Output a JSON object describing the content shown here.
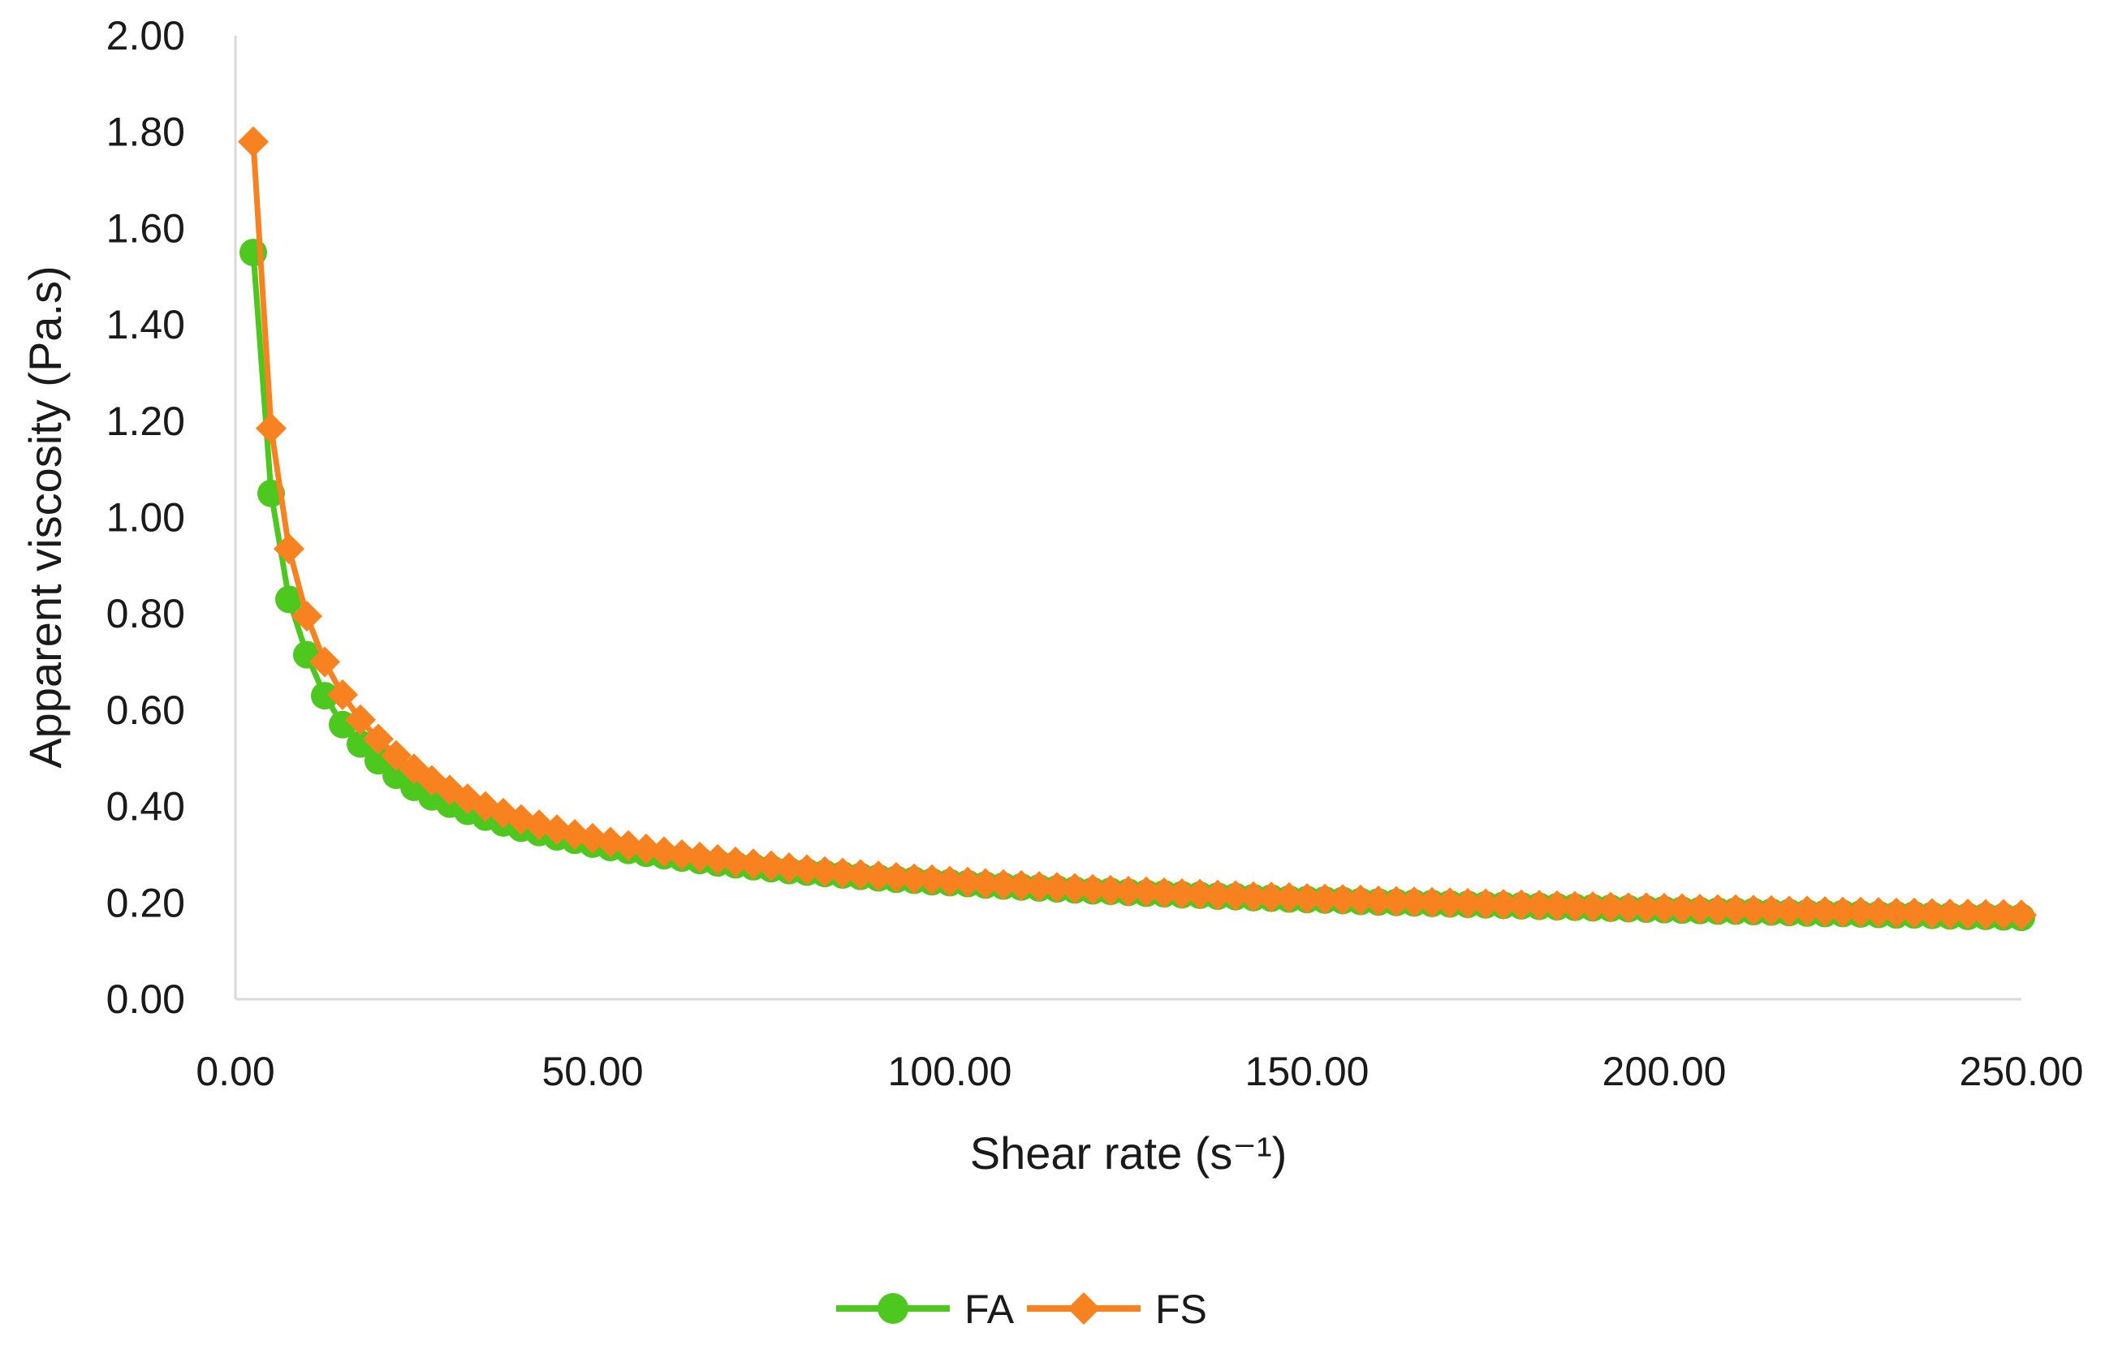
{
  "chart_data": {
    "type": "line",
    "title": "",
    "xlabel": "Shear rate (s⁻¹)",
    "ylabel": "Apparent viscosity (Pa.s)",
    "xlim": [
      0,
      250
    ],
    "ylim": [
      0,
      2
    ],
    "x_ticks": [
      "0.00",
      "50.00",
      "100.00",
      "150.00",
      "200.00",
      "250.00"
    ],
    "y_ticks": [
      "0.00",
      "0.20",
      "0.40",
      "0.60",
      "0.80",
      "1.00",
      "1.20",
      "1.40",
      "1.60",
      "1.80",
      "2.00"
    ],
    "grid": false,
    "legend_position": "bottom",
    "x": [
      2.5,
      5,
      7.5,
      10,
      12.5,
      15,
      17.5,
      20,
      22.5,
      25,
      27.5,
      30,
      32.5,
      35,
      37.5,
      40,
      42.5,
      45,
      47.5,
      50,
      52.5,
      55,
      57.5,
      60,
      62.5,
      65,
      67.5,
      70,
      72.5,
      75,
      77.5,
      80,
      82.5,
      85,
      87.5,
      90,
      92.5,
      95,
      97.5,
      100,
      102.5,
      105,
      107.5,
      110,
      112.5,
      115,
      117.5,
      120,
      122.5,
      125,
      127.5,
      130,
      132.5,
      135,
      137.5,
      140,
      142.5,
      145,
      147.5,
      150,
      152.5,
      155,
      157.5,
      160,
      162.5,
      165,
      167.5,
      170,
      172.5,
      175,
      177.5,
      180,
      182.5,
      185,
      187.5,
      190,
      192.5,
      195,
      197.5,
      200,
      202.5,
      205,
      207.5,
      210,
      212.5,
      215,
      217.5,
      220,
      222.5,
      225,
      227.5,
      230,
      232.5,
      235,
      237.5,
      240,
      242.5,
      245,
      247.5,
      250
    ],
    "series": [
      {
        "name": "FA",
        "color": "#4dc81e",
        "marker": "circle",
        "values": [
          1.55,
          1.05,
          0.83,
          0.715,
          0.63,
          0.57,
          0.53,
          0.495,
          0.465,
          0.44,
          0.42,
          0.405,
          0.39,
          0.378,
          0.366,
          0.355,
          0.346,
          0.337,
          0.33,
          0.322,
          0.315,
          0.309,
          0.303,
          0.298,
          0.293,
          0.288,
          0.283,
          0.279,
          0.275,
          0.271,
          0.267,
          0.264,
          0.261,
          0.258,
          0.255,
          0.252,
          0.249,
          0.247,
          0.244,
          0.242,
          0.24,
          0.237,
          0.235,
          0.233,
          0.231,
          0.229,
          0.227,
          0.225,
          0.224,
          0.222,
          0.22,
          0.219,
          0.217,
          0.216,
          0.214,
          0.213,
          0.211,
          0.21,
          0.208,
          0.207,
          0.206,
          0.205,
          0.203,
          0.202,
          0.201,
          0.2,
          0.199,
          0.198,
          0.197,
          0.196,
          0.195,
          0.194,
          0.193,
          0.192,
          0.191,
          0.19,
          0.189,
          0.188,
          0.187,
          0.186,
          0.185,
          0.184,
          0.183,
          0.183,
          0.182,
          0.181,
          0.18,
          0.179,
          0.178,
          0.178,
          0.177,
          0.176,
          0.175,
          0.175,
          0.174,
          0.173,
          0.172,
          0.172,
          0.171,
          0.17
        ]
      },
      {
        "name": "FS",
        "color": "#f98220",
        "marker": "diamond",
        "values": [
          1.78,
          1.185,
          0.935,
          0.795,
          0.7,
          0.632,
          0.58,
          0.54,
          0.506,
          0.478,
          0.454,
          0.434,
          0.416,
          0.4,
          0.386,
          0.373,
          0.362,
          0.352,
          0.342,
          0.334,
          0.326,
          0.319,
          0.312,
          0.306,
          0.3,
          0.295,
          0.29,
          0.285,
          0.281,
          0.277,
          0.273,
          0.269,
          0.265,
          0.262,
          0.259,
          0.256,
          0.253,
          0.25,
          0.248,
          0.245,
          0.243,
          0.24,
          0.238,
          0.236,
          0.234,
          0.232,
          0.23,
          0.228,
          0.226,
          0.224,
          0.223,
          0.221,
          0.219,
          0.218,
          0.216,
          0.215,
          0.213,
          0.212,
          0.211,
          0.209,
          0.208,
          0.207,
          0.206,
          0.204,
          0.203,
          0.202,
          0.201,
          0.2,
          0.199,
          0.198,
          0.197,
          0.196,
          0.195,
          0.194,
          0.193,
          0.192,
          0.191,
          0.19,
          0.19,
          0.189,
          0.188,
          0.187,
          0.186,
          0.186,
          0.185,
          0.184,
          0.183,
          0.183,
          0.182,
          0.181,
          0.181,
          0.18,
          0.179,
          0.179,
          0.178,
          0.177,
          0.177,
          0.176,
          0.176,
          0.175
        ]
      }
    ]
  }
}
